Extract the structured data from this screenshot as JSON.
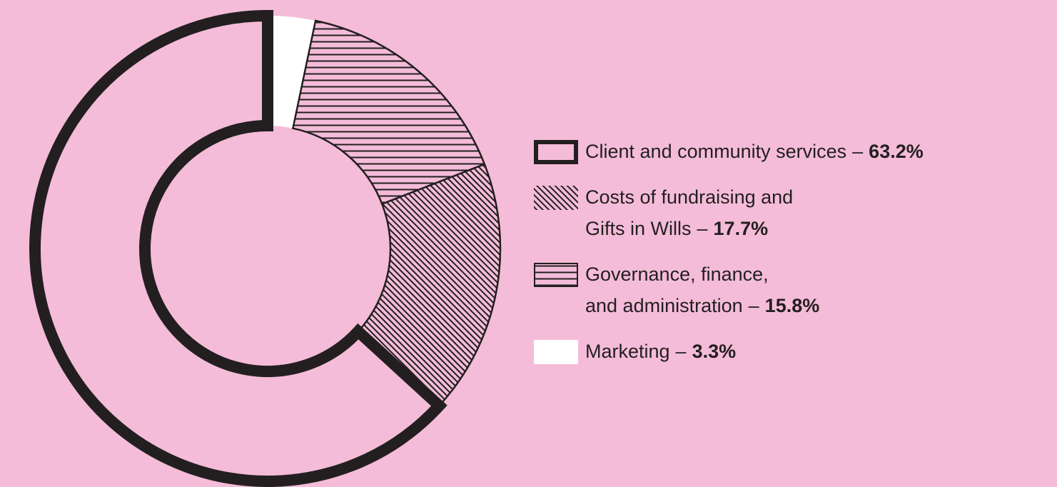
{
  "chart_data": {
    "type": "donut",
    "categories": [
      "Client and community services",
      "Costs of fundraising and\nGifts in Wills",
      "Governance, finance,\nand administration",
      "Marketing"
    ],
    "values": [
      63.2,
      17.7,
      15.8,
      3.3
    ],
    "value_labels": [
      "63.2%",
      "17.7%",
      "15.8%",
      "3.3%"
    ],
    "separator": "–",
    "colors": [
      "#f4bcd8",
      "#f4bcd8",
      "#f4bcd8",
      "#ffffff"
    ],
    "patterns": [
      "outline",
      "diagonal",
      "horizontal",
      "solid"
    ],
    "background": "#f4bcd8"
  }
}
